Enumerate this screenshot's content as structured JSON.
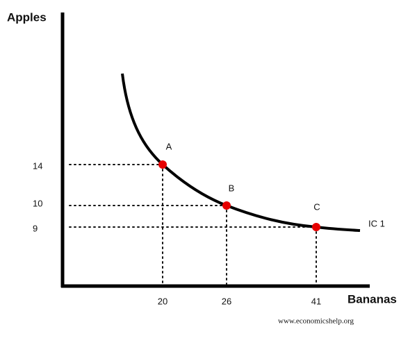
{
  "axes": {
    "y_label": "Apples",
    "x_label": "Bananas"
  },
  "curve": {
    "label": "IC 1"
  },
  "points": [
    {
      "label": "A",
      "x": 20,
      "y": 14
    },
    {
      "label": "B",
      "x": 26,
      "y": 10
    },
    {
      "label": "C",
      "x": 41,
      "y": 9
    }
  ],
  "source": "www.economicshelp.org"
}
